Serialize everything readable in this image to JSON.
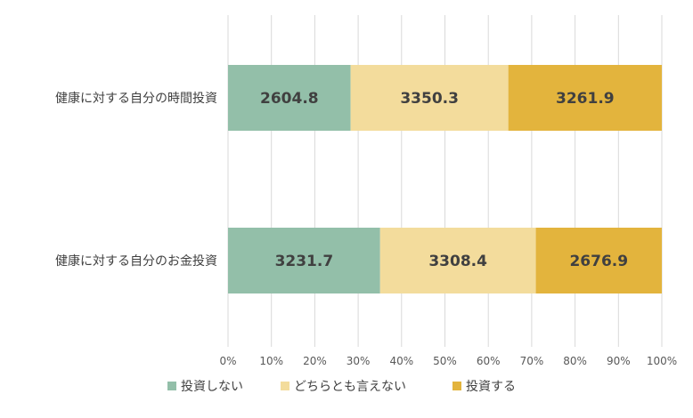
{
  "chart_data": {
    "type": "bar",
    "orientation": "horizontal",
    "stacked": "percent",
    "categories": [
      "健康に対する自分の時間投資",
      "健康に対する自分のお金投資"
    ],
    "series": [
      {
        "name": "投資しない",
        "color": "#93bfa9",
        "values": [
          2604.8,
          3231.7
        ]
      },
      {
        "name": "どちらとも言えない",
        "color": "#f3dc9c",
        "values": [
          3350.3,
          3308.4
        ]
      },
      {
        "name": "投資する",
        "color": "#e3b43d",
        "values": [
          3261.9,
          2676.9
        ]
      }
    ],
    "x_ticks": [
      "0%",
      "10%",
      "20%",
      "30%",
      "40%",
      "50%",
      "60%",
      "70%",
      "80%",
      "90%",
      "100%"
    ],
    "xlim": [
      0,
      100
    ],
    "grid": "vertical",
    "legend_position": "bottom"
  }
}
